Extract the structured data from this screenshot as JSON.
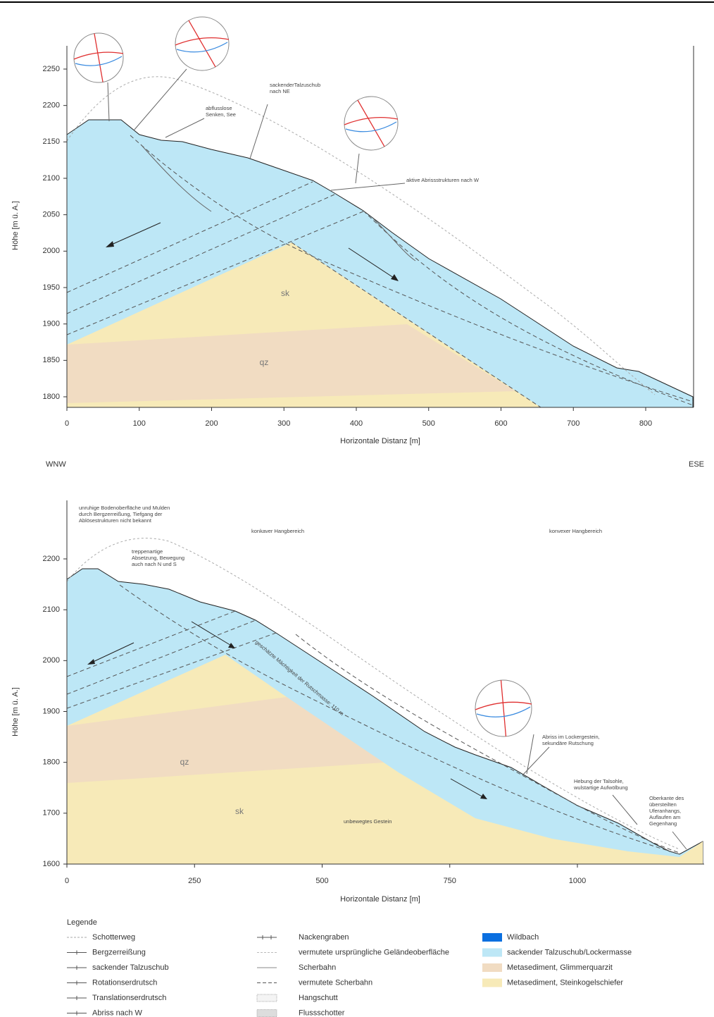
{
  "figure": {
    "panels": [
      {
        "x_axis": {
          "label": "Horizontale Distanz [m]",
          "ticks": [
            0,
            100,
            200,
            300,
            400,
            500,
            600,
            700,
            800
          ]
        },
        "y_axis": {
          "label": "Höhe [m ü. A.]",
          "ticks": [
            1800,
            1850,
            1900,
            1950,
            2000,
            2050,
            2100,
            2150,
            2200,
            2250
          ]
        },
        "annotations": [
          {
            "lines": [
              "sackenderTalzuschub",
              "nach NE"
            ]
          },
          {
            "lines": [
              "abflusslose",
              "Senken, See"
            ]
          },
          {
            "lines": [
              "aktive Abrissstrukturen nach W"
            ]
          },
          {
            "lines": [
              "sk"
            ]
          },
          {
            "lines": [
              "qz"
            ]
          }
        ]
      },
      {
        "x_axis": {
          "label": "Horizontale Distanz [m]",
          "ticks": [
            0,
            250,
            500,
            750,
            1000
          ]
        },
        "y_axis": {
          "label": "Höhe [m ü. A.]",
          "ticks": [
            1600,
            1700,
            1800,
            1900,
            2000,
            2100,
            2200
          ]
        },
        "annotations": [
          {
            "lines": [
              "unruhige Bodenoberfläche und Mulden",
              "durch Bergzerreißung, Tiefgang der",
              "Ablösestrukturen nicht bekannt"
            ]
          },
          {
            "lines": [
              "konkaver Hangbereich"
            ]
          },
          {
            "lines": [
              "konvexer Hangbereich"
            ]
          },
          {
            "lines": [
              "treppenartige",
              "Absetzung, Bewegung",
              "auch nach N und S"
            ]
          },
          {
            "lines": [
              "geschätzte Mächtigkeit der Rutschmasse: 110 m"
            ]
          },
          {
            "lines": [
              "Abriss im Lockergestein,",
              "sekundäre Rutschung"
            ]
          },
          {
            "lines": [
              "Hebung der Talsohle,",
              "wulstartige Aufwölbung"
            ]
          },
          {
            "lines": [
              "Oberkante des",
              "übersteilten",
              "Uferanhangs,",
              "Auflaufen am",
              "Gegenhang"
            ]
          },
          {
            "lines": [
              "qz"
            ]
          },
          {
            "lines": [
              "sk"
            ]
          },
          {
            "lines": [
              "unbewegtes Gestein"
            ]
          }
        ]
      }
    ],
    "direction_labels": [
      "WNW",
      "ESE"
    ],
    "legend": {
      "title": "Legende",
      "columns": [
        [
          {
            "label": "Schotterweg"
          },
          {
            "label": "Bergzerreißung"
          },
          {
            "label": "sackender Talzuschub"
          },
          {
            "label": "Rotationserdrutsch"
          },
          {
            "label": "Translationserdrutsch"
          },
          {
            "label": "Abriss nach W"
          }
        ],
        [
          {
            "label": "Nackengraben"
          },
          {
            "label": "vermutete ursprüngliche Geländeoberfläche"
          },
          {
            "label": "Scherbahn"
          },
          {
            "label": "vermutete Scherbahn"
          },
          {
            "label": "Hangschutt"
          },
          {
            "label": "Flussschotter"
          }
        ],
        [
          {
            "label": "Wildbach",
            "color": "#0a6fe0"
          },
          {
            "label": "sackender Talzuschub/Lockermasse",
            "color": "#bde7f6"
          },
          {
            "label": "Metasediment, Glimmerquarzit",
            "color": "#f1dcc2"
          },
          {
            "label": "Metasediment, Steinkogelschiefer",
            "color": "#f7eab8"
          }
        ]
      ]
    }
  }
}
